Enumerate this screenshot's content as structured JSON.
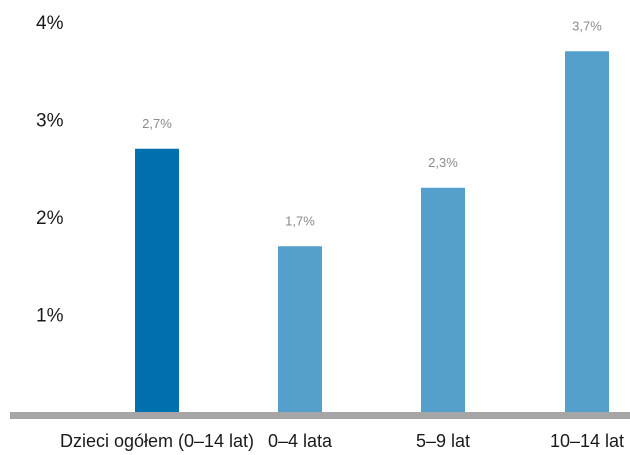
{
  "chart_data": {
    "type": "bar",
    "title": "",
    "xlabel": "",
    "ylabel": "",
    "categories": [
      "Dzieci ogółem (0–14 lat)",
      "0–4 lata",
      "5–9 lat",
      "10–14 lat"
    ],
    "values": [
      2.7,
      1.7,
      2.3,
      3.7
    ],
    "data_labels": [
      "2,7%",
      "1,7%",
      "2,3%",
      "3,7%"
    ],
    "ylim": [
      0,
      4
    ],
    "yticks": [
      {
        "value": 1,
        "label": "1%"
      },
      {
        "value": 2,
        "label": "2%"
      },
      {
        "value": 3,
        "label": "3%"
      },
      {
        "value": 4,
        "label": "4%"
      }
    ],
    "grid": false,
    "legend": "none",
    "colors": {
      "highlight_bar": "#0070AF",
      "bar": "#559FCD",
      "baseline": "#A6A6A6"
    },
    "highlight_index": 0
  }
}
